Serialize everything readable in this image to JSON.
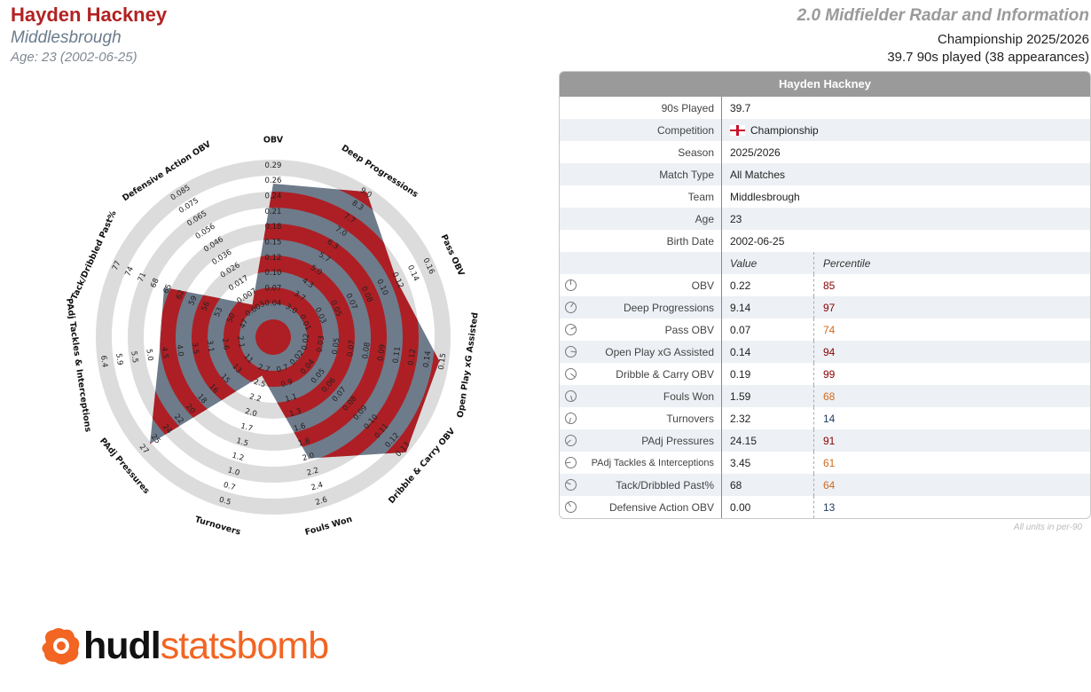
{
  "header": {
    "player_name": "Hayden Hackney",
    "team": "Middlesbrough",
    "age_line": "Age: 23 (2002-06-25)",
    "radar_title": "2.0 Midfielder Radar and Information",
    "competition_line": "Championship 2025/2026",
    "played_line": "39.7 90s played (38 appearances)"
  },
  "colors": {
    "player_red": "#b22222",
    "radar_fill_red": "#ad1f24",
    "radar_fill_slate": "#6e7b8b",
    "ring_gray": "#dcdcdc",
    "percentile_high": "#8b0000",
    "percentile_mid": "#d2691e",
    "percentile_low": "#1f3a5f"
  },
  "chart_data": {
    "type": "radar",
    "rings": 5,
    "axes": [
      {
        "label": "OBV",
        "ticks": [
          "0.04",
          "0.07",
          "0.10",
          "0.12",
          "0.15",
          "0.18",
          "0.21",
          "0.24",
          "0.26",
          "0.29"
        ],
        "value": 0.22,
        "percentile": 85
      },
      {
        "label": "Deep Progressions",
        "ticks": [
          "3.0",
          "3.7",
          "4.3",
          "5.0",
          "5.7",
          "6.3",
          "7.0",
          "7.7",
          "8.3",
          "9.0"
        ],
        "value": 9.14,
        "percentile": 97
      },
      {
        "label": "Pass OBV",
        "ticks": [
          "0.01",
          "0.03",
          "0.05",
          "0.07",
          "0.08",
          "0.10",
          "0.12",
          "0.14",
          "0.16"
        ],
        "value": 0.07,
        "percentile": 74
      },
      {
        "label": "Open Play xG Assisted",
        "ticks": [
          "0.02",
          "0.03",
          "0.05",
          "0.07",
          "0.08",
          "0.09",
          "0.11",
          "0.12",
          "0.14",
          "0.15"
        ],
        "value": 0.14,
        "percentile": 94
      },
      {
        "label": "Dribble & Carry OBV",
        "ticks": [
          "0.02",
          "0.04",
          "0.05",
          "0.06",
          "0.07",
          "0.08",
          "0.09",
          "0.10",
          "0.11",
          "0.12",
          "0.13"
        ],
        "value": 0.19,
        "percentile": 99
      },
      {
        "label": "Fouls Won",
        "ticks": [
          "0.7",
          "0.9",
          "1.1",
          "1.3",
          "1.6",
          "1.8",
          "2.0",
          "2.2",
          "2.4",
          "2.6"
        ],
        "value": 1.59,
        "percentile": 68
      },
      {
        "label": "Turnovers",
        "ticks": [
          "2.7",
          "2.5",
          "2.2",
          "2.0",
          "1.7",
          "1.5",
          "1.2",
          "1.0",
          "0.7",
          "0.5"
        ],
        "value": 2.32,
        "percentile": 14
      },
      {
        "label": "PAdj Pressures",
        "ticks": [
          "11",
          "13",
          "15",
          "16",
          "18",
          "20",
          "22",
          "24",
          "25",
          "27"
        ],
        "value": 24.15,
        "percentile": 91
      },
      {
        "label": "PAdj Tackles & Interceptions",
        "ticks": [
          "2.1",
          "2.6",
          "3.1",
          "3.5",
          "4.0",
          "4.5",
          "5.0",
          "5.5",
          "5.9",
          "6.4"
        ],
        "value": 3.45,
        "percentile": 61
      },
      {
        "label": "Tack/Dribbled Past%",
        "ticks": [
          "47",
          "50",
          "53",
          "56",
          "59",
          "62",
          "65",
          "68",
          "71",
          "74",
          "77"
        ],
        "value": 68,
        "percentile": 64
      },
      {
        "label": "Defensive Action OBV",
        "ticks": [
          "0.003",
          "0.007",
          "0.017",
          "0.026",
          "0.036",
          "0.046",
          "0.056",
          "0.065",
          "0.075",
          "0.085"
        ],
        "value": 0.0,
        "percentile": 13
      }
    ]
  },
  "table": {
    "title": "Hayden Hackney",
    "info_rows": [
      {
        "label": "90s Played",
        "value": "39.7"
      },
      {
        "label": "Competition",
        "value": "Championship"
      },
      {
        "label": "Season",
        "value": "2025/2026"
      },
      {
        "label": "Match Type",
        "value": "All Matches"
      },
      {
        "label": "Team",
        "value": "Middlesbrough"
      },
      {
        "label": "Age",
        "value": "23"
      },
      {
        "label": "Birth Date",
        "value": "2002-06-25"
      }
    ],
    "col_value": "Value",
    "col_percentile": "Percentile",
    "metric_rows": [
      {
        "label": "OBV",
        "value": "0.22",
        "percentile": "85"
      },
      {
        "label": "Deep Progressions",
        "value": "9.14",
        "percentile": "97"
      },
      {
        "label": "Pass OBV",
        "value": "0.07",
        "percentile": "74"
      },
      {
        "label": "Open Play xG Assisted",
        "value": "0.14",
        "percentile": "94"
      },
      {
        "label": "Dribble & Carry OBV",
        "value": "0.19",
        "percentile": "99"
      },
      {
        "label": "Fouls Won",
        "value": "1.59",
        "percentile": "68"
      },
      {
        "label": "Turnovers",
        "value": "2.32",
        "percentile": "14"
      },
      {
        "label": "PAdj Pressures",
        "value": "24.15",
        "percentile": "91"
      },
      {
        "label": "PAdj Tackles & Interceptions",
        "value": "3.45",
        "percentile": "61"
      },
      {
        "label": "Tack/Dribbled Past%",
        "value": "68",
        "percentile": "64"
      },
      {
        "label": "Defensive Action OBV",
        "value": "0.00",
        "percentile": "13"
      }
    ],
    "units_note": "All units in per-90"
  },
  "logo": {
    "word_a": "hudl",
    "word_b": "statsbomb",
    "icon": "statsbomb-logo-icon"
  }
}
